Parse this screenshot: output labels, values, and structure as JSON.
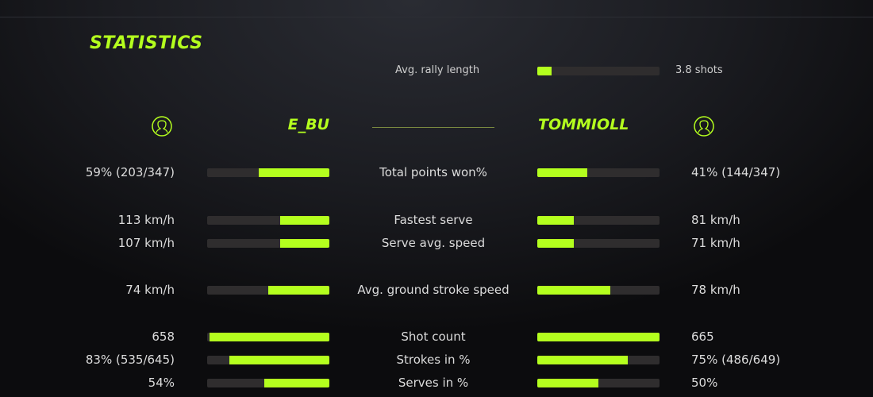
{
  "title": "STATISTICS",
  "accent_color": "#b4ff1e",
  "rally": {
    "label": "Avg. rally length",
    "value": "3.8 shots",
    "fill": 0.12
  },
  "players": {
    "left": {
      "name": "E_BU",
      "icon": "user-icon"
    },
    "right": {
      "name": "TOMMIOLL",
      "icon": "user-icon"
    }
  },
  "stats": [
    {
      "label": "Total points won%",
      "left": "59% (203/347)",
      "right": "41% (144/347)",
      "left_fill": 0.58,
      "right_fill": 0.41
    },
    {
      "label": "Fastest serve",
      "left": "113 km/h",
      "right": "81 km/h",
      "left_fill": 0.4,
      "right_fill": 0.3
    },
    {
      "label": "Serve avg. speed",
      "left": "107 km/h",
      "right": "71 km/h",
      "left_fill": 0.4,
      "right_fill": 0.3
    },
    {
      "label": "Avg. ground stroke speed",
      "left": "74 km/h",
      "right": "78 km/h",
      "left_fill": 0.5,
      "right_fill": 0.6
    },
    {
      "label": "Shot count",
      "left": "658",
      "right": "665",
      "left_fill": 0.98,
      "right_fill": 1.0
    },
    {
      "label": "Strokes in %",
      "left": "83% (535/645)",
      "right": "75% (486/649)",
      "left_fill": 0.82,
      "right_fill": 0.74
    },
    {
      "label": "Serves in %",
      "left": "54%",
      "right": "50%",
      "left_fill": 0.53,
      "right_fill": 0.5
    }
  ]
}
